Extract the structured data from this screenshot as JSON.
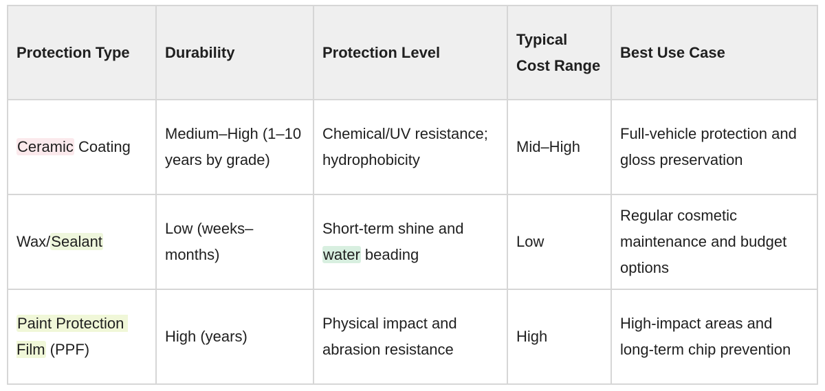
{
  "table": {
    "header": [
      "Protection Type",
      "Durability",
      "Protection Level",
      "Typical Cost Range",
      "Best Use Case"
    ],
    "rows": [
      [
        [
          {
            "text": "Ceramic",
            "highlight": "#fbe9ec"
          },
          {
            "text": " Coating"
          }
        ],
        [
          {
            "text": "Medium–High (1–10 years by grade)"
          }
        ],
        [
          {
            "text": "Chemical/UV resistance; hydrophobicity"
          }
        ],
        [
          {
            "text": "Mid–High"
          }
        ],
        [
          {
            "text": "Full-vehicle protection and gloss preservation"
          }
        ]
      ],
      [
        [
          {
            "text": "Wax/"
          },
          {
            "text": "Sealant",
            "highlight": "#eef6dc"
          }
        ],
        [
          {
            "text": "Low (weeks–months)"
          }
        ],
        [
          {
            "text": "Short-term shine and "
          },
          {
            "text": "water",
            "highlight": "#d8efe0"
          },
          {
            "text": " beading"
          }
        ],
        [
          {
            "text": "Low"
          }
        ],
        [
          {
            "text": "Regular cosmetic maintenance and budget options"
          }
        ]
      ],
      [
        [
          {
            "text": "Paint Protection Film",
            "highlight": "#f0f7d8"
          },
          {
            "text": " (PPF)"
          }
        ],
        [
          {
            "text": "High (years)"
          }
        ],
        [
          {
            "text": "Physical impact and abrasion resistance"
          }
        ],
        [
          {
            "text": "High"
          }
        ],
        [
          {
            "text": "High-impact areas and long-term chip prevention"
          }
        ]
      ]
    ]
  }
}
